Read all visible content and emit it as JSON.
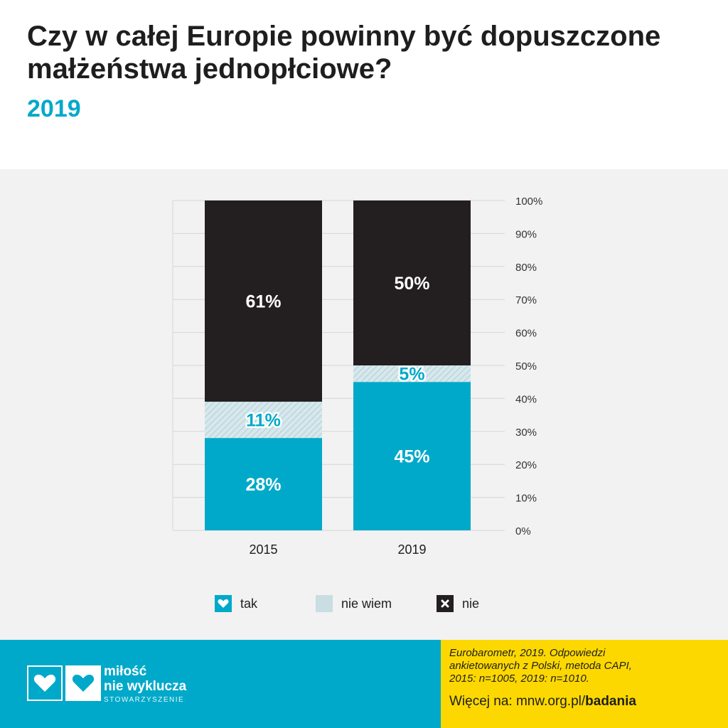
{
  "header": {
    "title_line1": "Czy w całej Europie powinny być dopuszczone",
    "title_line2": "małżeństwa jednopłciowe?",
    "subtitle": "2019"
  },
  "colors": {
    "tak": "#00a9c9",
    "nie_wiem": "#c9dde3",
    "nie": "#231f20",
    "brand_yellow": "#fdd800",
    "background_panel": "#f2f2f2"
  },
  "chart_data": {
    "type": "bar",
    "stacked": true,
    "categories": [
      "2015",
      "2019"
    ],
    "series": [
      {
        "name": "tak",
        "values": [
          28,
          45
        ],
        "labels": [
          "28%",
          "45%"
        ]
      },
      {
        "name": "nie wiem",
        "values": [
          11,
          5
        ],
        "labels": [
          "11%",
          "5%"
        ]
      },
      {
        "name": "nie",
        "values": [
          61,
          50
        ],
        "labels": [
          "61%",
          "50%"
        ]
      }
    ],
    "y_ticks": [
      "0%",
      "10%",
      "20%",
      "30%",
      "40%",
      "50%",
      "60%",
      "70%",
      "80%",
      "90%",
      "100%"
    ],
    "ylim": [
      0,
      100
    ],
    "y_axis_side": "right",
    "grid": true,
    "legend_position": "bottom",
    "title": "",
    "xlabel": "",
    "ylabel": ""
  },
  "legend": {
    "items": [
      {
        "label": "tak",
        "icon": "heart-check-icon"
      },
      {
        "label": "nie wiem",
        "icon": ""
      },
      {
        "label": "nie",
        "icon": "x-mark-icon"
      }
    ]
  },
  "footer": {
    "logo_line1": "miłość",
    "logo_line2": "nie wyklucza",
    "logo_sub": "STOWARZYSZENIE",
    "source_line1": "Eurobarometr, 2019. Odpowiedzi",
    "source_line2": "ankietowanych z Polski, metoda CAPI,",
    "source_line3": "2015: n=1005, 2019: n=1010.",
    "more_prefix": "Więcej na: mnw.org.pl/",
    "more_bold": "badania"
  }
}
